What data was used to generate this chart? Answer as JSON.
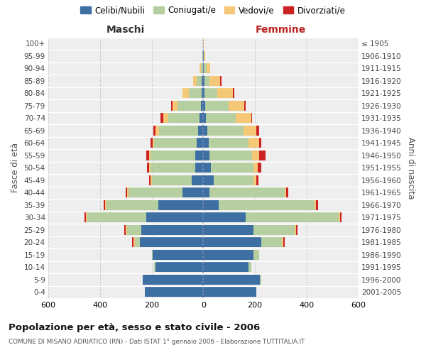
{
  "age_groups": [
    "0-4",
    "5-9",
    "10-14",
    "15-19",
    "20-24",
    "25-29",
    "30-34",
    "35-39",
    "40-44",
    "45-49",
    "50-54",
    "55-59",
    "60-64",
    "65-69",
    "70-74",
    "75-79",
    "80-84",
    "85-89",
    "90-94",
    "95-99",
    "100+"
  ],
  "birth_years": [
    "2001-2005",
    "1996-2000",
    "1991-1995",
    "1986-1990",
    "1981-1985",
    "1976-1980",
    "1971-1975",
    "1966-1970",
    "1961-1965",
    "1956-1960",
    "1951-1955",
    "1946-1950",
    "1941-1945",
    "1936-1940",
    "1931-1935",
    "1926-1930",
    "1921-1925",
    "1916-1920",
    "1911-1915",
    "1906-1910",
    "≤ 1905"
  ],
  "maschi_celibi": [
    225,
    235,
    185,
    195,
    245,
    240,
    220,
    175,
    80,
    45,
    30,
    30,
    25,
    20,
    15,
    10,
    5,
    5,
    2,
    1,
    0
  ],
  "maschi_coniugati": [
    0,
    0,
    5,
    5,
    20,
    55,
    230,
    200,
    210,
    155,
    175,
    175,
    165,
    150,
    120,
    90,
    50,
    20,
    8,
    2,
    0
  ],
  "maschi_vedovi": [
    0,
    0,
    0,
    0,
    5,
    5,
    5,
    5,
    5,
    5,
    5,
    5,
    5,
    15,
    20,
    20,
    25,
    15,
    5,
    1,
    0
  ],
  "maschi_divorziati": [
    0,
    0,
    0,
    0,
    5,
    5,
    5,
    5,
    5,
    5,
    8,
    10,
    8,
    8,
    10,
    5,
    0,
    0,
    0,
    0,
    0
  ],
  "femmine_nubili": [
    205,
    220,
    175,
    195,
    225,
    195,
    165,
    60,
    25,
    40,
    30,
    25,
    20,
    15,
    10,
    8,
    5,
    5,
    3,
    1,
    0
  ],
  "femmine_coniugate": [
    0,
    5,
    10,
    20,
    80,
    160,
    360,
    370,
    290,
    155,
    165,
    165,
    155,
    140,
    115,
    90,
    50,
    20,
    10,
    2,
    0
  ],
  "femmine_vedove": [
    0,
    0,
    0,
    0,
    5,
    5,
    5,
    5,
    5,
    10,
    15,
    25,
    40,
    50,
    60,
    60,
    60,
    40,
    15,
    5,
    1
  ],
  "femmine_divorziate": [
    0,
    0,
    0,
    0,
    5,
    5,
    5,
    10,
    8,
    8,
    15,
    25,
    10,
    10,
    5,
    5,
    5,
    5,
    0,
    0,
    0
  ],
  "colors": {
    "celibi": "#3d6fa3",
    "coniugati": "#b5cfa0",
    "vedovi": "#f5c878",
    "divorziati": "#cc2222"
  },
  "title": "Popolazione per età, sesso e stato civile - 2006",
  "subtitle": "COMUNE DI MISANO ADRIATICO (RN) - Dati ISTAT 1° gennaio 2006 - Elaborazione TUTTITALIA.IT",
  "label_maschi": "Maschi",
  "label_femmine": "Femmine",
  "ylabel_left": "Fasce di età",
  "ylabel_right": "Anni di nascita",
  "xlim": 600,
  "bg_color": "#ffffff",
  "plot_bg": "#eeeeee",
  "grid_color": "#cccccc",
  "legend_labels": [
    "Celibi/Nubili",
    "Coniugati/e",
    "Vedovi/e",
    "Divorziati/e"
  ]
}
